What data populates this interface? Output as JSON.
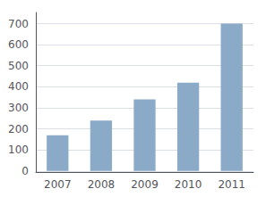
{
  "chart_data": {
    "type": "bar",
    "categories": [
      "2007",
      "2008",
      "2009",
      "2010",
      "2011"
    ],
    "values": [
      170,
      240,
      340,
      420,
      700
    ],
    "color": "#8aaac8",
    "ylim": [
      -5,
      753
    ],
    "yticks": [
      0,
      100,
      200,
      300,
      400,
      500,
      600,
      700
    ],
    "grid": true
  }
}
